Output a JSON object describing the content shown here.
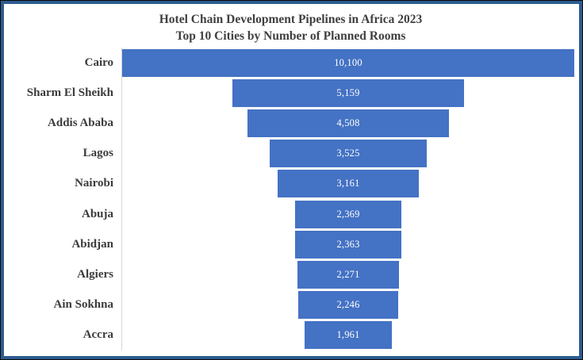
{
  "chart_data": {
    "type": "bar",
    "variant": "funnel-centered",
    "orientation": "horizontal",
    "title": "Hotel Chain Development Pipelines in Africa 2023",
    "subtitle": "Top 10 Cities by Number of Planned Rooms",
    "categories": [
      "Cairo",
      "Sharm El Sheikh",
      "Addis Ababa",
      "Lagos",
      "Nairobi",
      "Abuja",
      "Abidjan",
      "Algiers",
      "Ain Sokhna",
      "Accra"
    ],
    "values": [
      10100,
      5159,
      4508,
      3525,
      3161,
      2369,
      2363,
      2271,
      2246,
      1961
    ],
    "value_labels": [
      "10,100",
      "5,159",
      "4,508",
      "3,525",
      "3,161",
      "2,369",
      "2,363",
      "2,271",
      "2,246",
      "1,961"
    ],
    "xlabel": "",
    "ylabel": "",
    "xlim": [
      0,
      10100
    ],
    "grid": false,
    "legend": false,
    "data_labels": "inside-center"
  },
  "colors": {
    "bar": "#4472C4",
    "value_text": "#FFFFFF",
    "title_text": "#404040",
    "category_text": "#3B3B3B",
    "axis_line": "#D6D6D6",
    "frame_border": "#2E5C8E",
    "outer_border": "#0A0A0A",
    "background": "#FFFFFF"
  }
}
